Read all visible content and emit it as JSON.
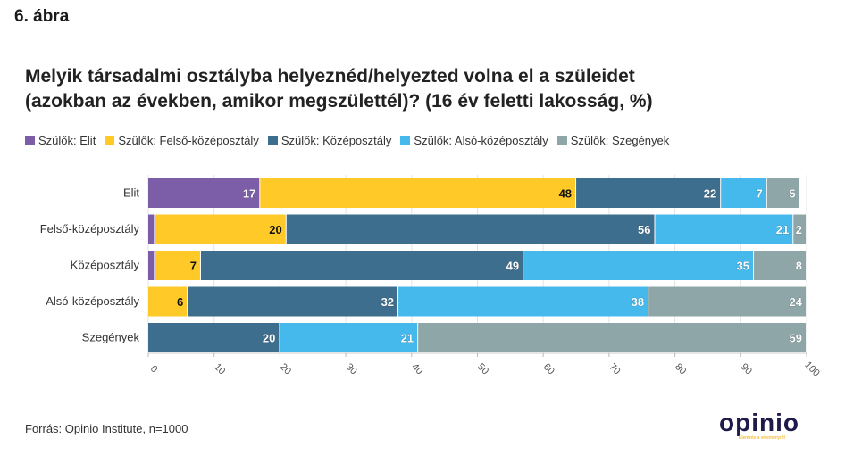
{
  "figure_label": "6. ábra",
  "title_line1": "Melyik társadalmi osztályba helyeznéd/helyezted volna el a szüleidet",
  "title_line2": "(azokban az években, amikor megszülettél)? (16 év feletti lakosság, %)",
  "source": "Forrás: Opinio Institute, n=1000",
  "logo": {
    "text": "opinio",
    "tagline": "Elemzés a véleményről"
  },
  "chart_data": {
    "type": "bar",
    "orientation": "horizontal",
    "stacked": true,
    "categories": [
      "Elit",
      "Felső-középosztály",
      "Középosztály",
      "Alsó-középosztály",
      "Szegények"
    ],
    "series": [
      {
        "name": "Szülők: Elit",
        "color": "#7b5ea7",
        "values": [
          17,
          1,
          1,
          0,
          0
        ],
        "labels": [
          "17",
          "",
          "",
          "",
          ""
        ]
      },
      {
        "name": "Szülők: Felső-középosztály",
        "color": "#ffca28",
        "values": [
          48,
          20,
          7,
          6,
          0
        ],
        "labels": [
          "48",
          "20",
          "7",
          "6",
          ""
        ]
      },
      {
        "name": "Szülők: Középosztály",
        "color": "#3e6e8e",
        "values": [
          22,
          56,
          49,
          32,
          20
        ],
        "labels": [
          "22",
          "56",
          "49",
          "32",
          "20"
        ]
      },
      {
        "name": "Szülők: Alsó-középosztály",
        "color": "#45b8ec",
        "values": [
          7,
          21,
          35,
          38,
          21
        ],
        "labels": [
          "7",
          "21",
          "35",
          "38",
          "21"
        ]
      },
      {
        "name": "Szülők: Szegények",
        "color": "#8fa6a8",
        "values": [
          5,
          2,
          8,
          24,
          59
        ],
        "labels": [
          "5",
          "2",
          "8",
          "24",
          "59"
        ]
      }
    ],
    "xlim": [
      0,
      100
    ],
    "xticks": [
      0,
      10,
      20,
      30,
      40,
      50,
      60,
      70,
      80,
      90,
      100
    ],
    "grid": true,
    "legend_position": "top"
  }
}
